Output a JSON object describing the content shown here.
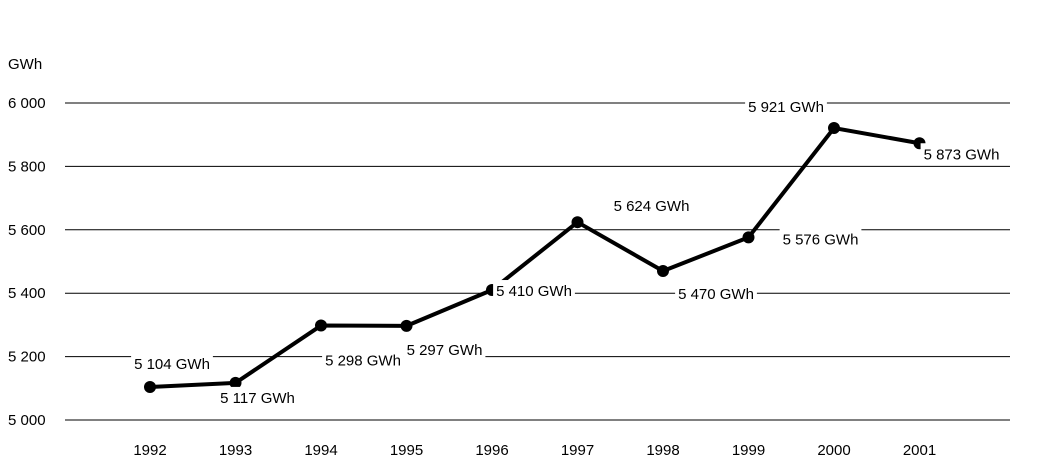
{
  "chart_data": {
    "type": "line",
    "ylabel": "GWh",
    "ylim": [
      5000,
      6000
    ],
    "yticks": [
      5000,
      5200,
      5400,
      5600,
      5800,
      6000
    ],
    "ytick_labels": [
      "5 000",
      "5 200",
      "5 400",
      "5 600",
      "5 800",
      "6 000"
    ],
    "categories": [
      "1992",
      "1993",
      "1994",
      "1995",
      "1996",
      "1997",
      "1998",
      "1999",
      "2000",
      "2001"
    ],
    "series": [
      {
        "values": [
          5104,
          5117,
          5298,
          5297,
          5410,
          5624,
          5470,
          5576,
          5921,
          5873
        ],
        "labels": [
          "5 104 GWh",
          "5 117 GWh",
          "5 298 GWh",
          "5 297 GWh",
          "5 410 GWh",
          "5 624 GWh",
          "5 470 GWh",
          "5 576 GWh",
          "5 921 GWh",
          "5 873 GWh"
        ]
      }
    ],
    "grid": true,
    "legend": "none",
    "colors": {
      "line": "#000000",
      "grid": "#000000",
      "background": "#ffffff"
    }
  }
}
